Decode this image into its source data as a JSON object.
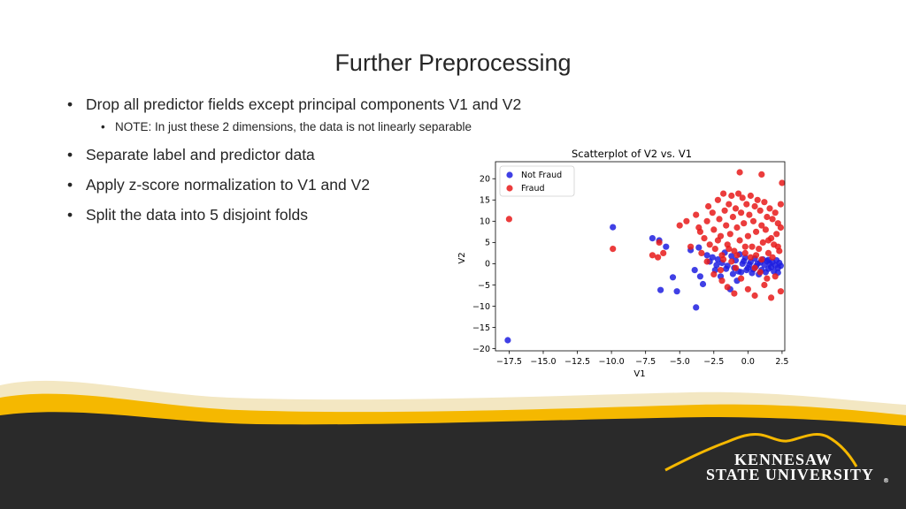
{
  "slide": {
    "title": "Further Preprocessing",
    "bullets": [
      "Drop all predictor fields except principal components V1 and V2",
      "NOTE: In just these 2 dimensions, the data is not linearly separable",
      "Separate label and predictor data",
      "Apply z-score normalization to V1 and V2",
      "Split the data into 5 disjoint folds"
    ]
  },
  "chart_data": {
    "type": "scatter",
    "title": "Scatterplot of V2 vs. V1",
    "xlabel": "V1",
    "ylabel": "V2",
    "xlim": [
      -18.5,
      2.7
    ],
    "ylim": [
      -20.5,
      24
    ],
    "xticks": [
      -17.5,
      -15.0,
      -12.5,
      -10.0,
      -7.5,
      -5.0,
      -2.5,
      0.0,
      2.5
    ],
    "xtick_labels": [
      "−17.5",
      "−15.0",
      "−12.5",
      "−10.0",
      "−7.5",
      "−5.0",
      "−2.5",
      "0.0",
      "2.5"
    ],
    "yticks": [
      20,
      15,
      10,
      5,
      0,
      -5,
      -10,
      -15,
      -20
    ],
    "ytick_labels": [
      "20",
      "15",
      "10",
      "5",
      "0",
      "−5",
      "−10",
      "−15",
      "−20"
    ],
    "legend_position": "top-left",
    "grid": false,
    "series": [
      {
        "name": "Not Fraud",
        "color": "#1f1fe0",
        "points": [
          [
            -17.6,
            -18.0
          ],
          [
            -9.9,
            8.6
          ],
          [
            -7.0,
            6.0
          ],
          [
            -6.5,
            5.5
          ],
          [
            -6.0,
            4.0
          ],
          [
            -5.5,
            -3.2
          ],
          [
            -5.2,
            -6.5
          ],
          [
            -6.4,
            -6.2
          ],
          [
            -3.8,
            -10.3
          ],
          [
            -4.2,
            3.2
          ],
          [
            -3.9,
            -1.5
          ],
          [
            -3.6,
            3.8
          ],
          [
            -3.5,
            -3.0
          ],
          [
            -3.3,
            -4.8
          ],
          [
            -3.0,
            2.0
          ],
          [
            -2.8,
            0.5
          ],
          [
            -2.6,
            1.5
          ],
          [
            -2.4,
            -1.5
          ],
          [
            -2.2,
            1.0
          ],
          [
            -2.0,
            -3.0
          ],
          [
            -1.9,
            0.2
          ],
          [
            -1.7,
            2.6
          ],
          [
            -1.5,
            -0.5
          ],
          [
            -1.3,
            -6.0
          ],
          [
            -1.2,
            1.8
          ],
          [
            -1.0,
            -1.0
          ],
          [
            -0.9,
            0.8
          ],
          [
            -0.8,
            -4.0
          ],
          [
            -0.6,
            2.2
          ],
          [
            -0.5,
            -2.0
          ],
          [
            -0.4,
            0.0
          ],
          [
            -0.2,
            1.4
          ],
          [
            -0.1,
            -1.5
          ],
          [
            0.0,
            -1.0
          ],
          [
            0.2,
            0.4
          ],
          [
            0.3,
            -2.2
          ],
          [
            0.5,
            1.2
          ],
          [
            0.6,
            -0.6
          ],
          [
            0.8,
            -2.5
          ],
          [
            0.9,
            0.3
          ],
          [
            1.0,
            -1.5
          ],
          [
            1.1,
            1.0
          ],
          [
            1.2,
            -0.3
          ],
          [
            1.3,
            -2.0
          ],
          [
            1.4,
            0.6
          ],
          [
            1.5,
            -1.2
          ],
          [
            1.6,
            0.0
          ],
          [
            1.7,
            -0.8
          ],
          [
            1.8,
            0.4
          ],
          [
            1.9,
            -1.8
          ],
          [
            2.0,
            -0.4
          ],
          [
            2.1,
            0.8
          ],
          [
            2.2,
            -1.0
          ],
          [
            2.3,
            0.2
          ],
          [
            2.4,
            -0.5
          ],
          [
            -1.1,
            -2.4
          ],
          [
            -0.7,
            -1.8
          ],
          [
            -0.3,
            0.6
          ],
          [
            0.1,
            -0.2
          ],
          [
            0.7,
            0.0
          ],
          [
            1.5,
            0.9
          ],
          [
            2.2,
            -2.1
          ],
          [
            -2.3,
            -0.3
          ],
          [
            -1.6,
            -1.2
          ],
          [
            0.4,
            -1.3
          ]
        ]
      },
      {
        "name": "Fraud",
        "color": "#e81a1a",
        "points": [
          [
            -17.5,
            10.5
          ],
          [
            -9.9,
            3.5
          ],
          [
            -7.0,
            2.0
          ],
          [
            -6.6,
            1.5
          ],
          [
            -6.5,
            5.0
          ],
          [
            -6.2,
            2.5
          ],
          [
            -5.0,
            9.0
          ],
          [
            -4.5,
            10.0
          ],
          [
            -4.2,
            4.0
          ],
          [
            -3.8,
            11.5
          ],
          [
            -3.6,
            8.5
          ],
          [
            -3.5,
            7.5
          ],
          [
            -3.4,
            2.5
          ],
          [
            -3.2,
            6.0
          ],
          [
            -3.0,
            10.0
          ],
          [
            -2.9,
            13.5
          ],
          [
            -2.8,
            4.5
          ],
          [
            -2.6,
            12.0
          ],
          [
            -2.5,
            8.0
          ],
          [
            -2.4,
            3.5
          ],
          [
            -2.2,
            15.0
          ],
          [
            -2.1,
            10.5
          ],
          [
            -2.0,
            6.5
          ],
          [
            -1.9,
            2.0
          ],
          [
            -1.8,
            16.5
          ],
          [
            -1.7,
            12.5
          ],
          [
            -1.6,
            9.0
          ],
          [
            -1.5,
            4.5
          ],
          [
            -1.4,
            14.0
          ],
          [
            -1.3,
            7.0
          ],
          [
            -1.2,
            16.0
          ],
          [
            -1.1,
            11.0
          ],
          [
            -1.0,
            3.0
          ],
          [
            -0.9,
            13.0
          ],
          [
            -0.8,
            8.5
          ],
          [
            -0.7,
            16.5
          ],
          [
            -0.6,
            5.5
          ],
          [
            -0.5,
            12.0
          ],
          [
            -0.4,
            15.5
          ],
          [
            -0.3,
            9.5
          ],
          [
            -0.2,
            2.5
          ],
          [
            -0.1,
            14.0
          ],
          [
            0.0,
            6.5
          ],
          [
            0.1,
            11.5
          ],
          [
            0.2,
            16.0
          ],
          [
            0.3,
            4.0
          ],
          [
            0.4,
            10.0
          ],
          [
            0.5,
            13.5
          ],
          [
            0.6,
            7.5
          ],
          [
            0.7,
            15.0
          ],
          [
            0.8,
            3.5
          ],
          [
            0.9,
            12.5
          ],
          [
            1.0,
            9.0
          ],
          [
            1.1,
            5.0
          ],
          [
            1.2,
            14.5
          ],
          [
            1.3,
            8.0
          ],
          [
            1.4,
            11.0
          ],
          [
            1.5,
            2.5
          ],
          [
            1.6,
            13.0
          ],
          [
            1.7,
            6.0
          ],
          [
            1.8,
            10.5
          ],
          [
            1.9,
            4.5
          ],
          [
            2.0,
            12.0
          ],
          [
            2.1,
            7.0
          ],
          [
            2.2,
            9.5
          ],
          [
            2.3,
            3.0
          ],
          [
            2.4,
            8.5
          ],
          [
            1.0,
            21.0
          ],
          [
            -0.6,
            21.5
          ],
          [
            2.5,
            19.0
          ],
          [
            2.4,
            14.0
          ],
          [
            0.5,
            -7.5
          ],
          [
            1.7,
            -8.0
          ],
          [
            1.4,
            -3.5
          ],
          [
            -1.5,
            -5.5
          ],
          [
            -1.0,
            -7.0
          ],
          [
            0.0,
            -6.0
          ],
          [
            -2.5,
            -2.5
          ],
          [
            -3.0,
            0.5
          ],
          [
            -2.0,
            -1.5
          ],
          [
            -1.2,
            0.5
          ],
          [
            -0.5,
            -3.5
          ],
          [
            0.5,
            -1.0
          ],
          [
            1.2,
            -5.0
          ],
          [
            2.0,
            -3.0
          ],
          [
            -1.8,
            1.0
          ],
          [
            -0.8,
            2.0
          ],
          [
            0.2,
            1.5
          ],
          [
            1.0,
            1.0
          ],
          [
            1.8,
            1.5
          ],
          [
            -2.2,
            5.5
          ],
          [
            -1.4,
            3.5
          ],
          [
            -0.2,
            4.0
          ],
          [
            0.6,
            2.0
          ],
          [
            1.5,
            5.5
          ],
          [
            2.2,
            4.0
          ],
          [
            -0.9,
            -1.0
          ],
          [
            0.9,
            -2.0
          ],
          [
            2.4,
            -6.5
          ],
          [
            -1.9,
            -4.0
          ]
        ]
      }
    ]
  },
  "footer": {
    "logo_line1": "KENNESAW",
    "logo_line2": "STATE UNIVERSITY",
    "logo_mark": "®",
    "colors": {
      "gold": "#f5b800",
      "dark": "#2a2a2a",
      "cream": "#f3e7c2"
    }
  }
}
